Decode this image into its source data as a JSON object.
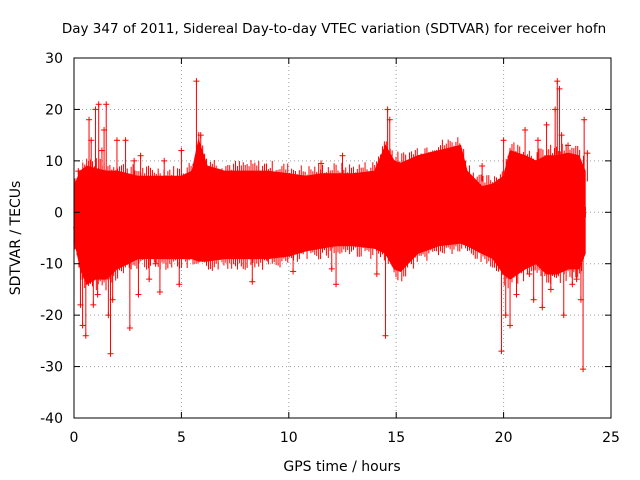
{
  "chart_data": {
    "type": "scatter",
    "title": "Day 347 of 2011, Sidereal Day-to-day VTEC variation (SDTVAR) for receiver hofn",
    "xlabel": "GPS time / hours",
    "ylabel": "SDTVAR / TECUs",
    "xlim": [
      0,
      25
    ],
    "ylim": [
      -40,
      30
    ],
    "x_ticks": [
      0,
      5,
      10,
      15,
      20,
      25
    ],
    "y_ticks": [
      -40,
      -30,
      -20,
      -10,
      0,
      10,
      20,
      30
    ],
    "x_tick_labels": [
      "0",
      "5",
      "10",
      "15",
      "20",
      "25"
    ],
    "y_tick_labels": [
      "-40",
      "-30",
      "-20",
      "-10",
      "0",
      "10",
      "20",
      "30"
    ],
    "grid": true,
    "series_color": "#ff0000",
    "marker": "plus-with-errorbars",
    "envelope": {
      "x": [
        0.0,
        0.3,
        0.6,
        1.0,
        1.5,
        2.0,
        2.5,
        3.0,
        4.0,
        5.0,
        5.5,
        5.8,
        6.2,
        7.0,
        8.0,
        9.0,
        10.0,
        10.8,
        11.5,
        12.2,
        13.0,
        14.0,
        14.5,
        14.9,
        15.2,
        16.0,
        17.0,
        18.0,
        18.3,
        19.0,
        19.5,
        20.0,
        20.3,
        21.0,
        21.5,
        22.0,
        22.5,
        23.0,
        23.5,
        23.8
      ],
      "upper": [
        5,
        8,
        9,
        8.5,
        8,
        8,
        7.5,
        7,
        7,
        7,
        8,
        14,
        9,
        8,
        8,
        8,
        7.5,
        7,
        7.5,
        7.5,
        7.5,
        8,
        13,
        10,
        9.5,
        11,
        12,
        13,
        8,
        5,
        5.5,
        7,
        12,
        11,
        10,
        11,
        11,
        11.5,
        11,
        8
      ],
      "lower": [
        -5,
        -11,
        -14,
        -13,
        -13,
        -11,
        -10,
        -9,
        -9,
        -9,
        -9,
        -9.5,
        -9.5,
        -9,
        -9,
        -9,
        -8.5,
        -7.5,
        -7,
        -6.5,
        -6.5,
        -7,
        -8,
        -11,
        -11.5,
        -8,
        -6.5,
        -6,
        -6.5,
        -8,
        -9,
        -12,
        -13,
        -11,
        -10,
        -12,
        -12,
        -11,
        -11,
        -8
      ]
    },
    "points": [
      {
        "x": 0.1,
        "y": -3
      },
      {
        "x": 0.2,
        "y": 8
      },
      {
        "x": 0.3,
        "y": -18
      },
      {
        "x": 0.4,
        "y": -22
      },
      {
        "x": 0.55,
        "y": -24
      },
      {
        "x": 0.7,
        "y": 18
      },
      {
        "x": 0.8,
        "y": 14
      },
      {
        "x": 0.9,
        "y": -18
      },
      {
        "x": 1.0,
        "y": 20
      },
      {
        "x": 1.1,
        "y": -16
      },
      {
        "x": 1.15,
        "y": 21
      },
      {
        "x": 1.3,
        "y": 12
      },
      {
        "x": 1.4,
        "y": 16
      },
      {
        "x": 1.5,
        "y": 21
      },
      {
        "x": 1.6,
        "y": -20
      },
      {
        "x": 1.7,
        "y": -27.5
      },
      {
        "x": 1.8,
        "y": -17
      },
      {
        "x": 2.0,
        "y": 14
      },
      {
        "x": 2.2,
        "y": -8
      },
      {
        "x": 2.4,
        "y": 14
      },
      {
        "x": 2.6,
        "y": -22.5
      },
      {
        "x": 2.8,
        "y": 10
      },
      {
        "x": 3.0,
        "y": -16
      },
      {
        "x": 3.1,
        "y": 11
      },
      {
        "x": 3.5,
        "y": -13
      },
      {
        "x": 3.8,
        "y": -10
      },
      {
        "x": 4.0,
        "y": -15.5
      },
      {
        "x": 4.2,
        "y": 10
      },
      {
        "x": 5.0,
        "y": 12
      },
      {
        "x": 4.9,
        "y": -14
      },
      {
        "x": 5.2,
        "y": -9
      },
      {
        "x": 5.7,
        "y": 25.5
      },
      {
        "x": 5.9,
        "y": 15
      },
      {
        "x": 6.0,
        "y": -9
      },
      {
        "x": 8.3,
        "y": -13.5
      },
      {
        "x": 9.0,
        "y": -9
      },
      {
        "x": 10.2,
        "y": -11.5
      },
      {
        "x": 12.0,
        "y": -11
      },
      {
        "x": 12.2,
        "y": -14
      },
      {
        "x": 11.5,
        "y": 9.5
      },
      {
        "x": 12.5,
        "y": 11
      },
      {
        "x": 14.1,
        "y": -12
      },
      {
        "x": 14.5,
        "y": -24
      },
      {
        "x": 14.6,
        "y": 20
      },
      {
        "x": 14.7,
        "y": 18
      },
      {
        "x": 19.0,
        "y": 9
      },
      {
        "x": 19.9,
        "y": -27
      },
      {
        "x": 20.0,
        "y": 14
      },
      {
        "x": 20.1,
        "y": -20
      },
      {
        "x": 20.3,
        "y": -22
      },
      {
        "x": 20.6,
        "y": -16
      },
      {
        "x": 21.0,
        "y": 16
      },
      {
        "x": 21.2,
        "y": -12
      },
      {
        "x": 21.4,
        "y": -17
      },
      {
        "x": 21.6,
        "y": 14
      },
      {
        "x": 21.8,
        "y": -18.5
      },
      {
        "x": 22.0,
        "y": 17
      },
      {
        "x": 22.2,
        "y": -15
      },
      {
        "x": 22.4,
        "y": 20
      },
      {
        "x": 22.5,
        "y": 25.5
      },
      {
        "x": 22.6,
        "y": 24
      },
      {
        "x": 22.7,
        "y": 15
      },
      {
        "x": 22.8,
        "y": -20
      },
      {
        "x": 23.0,
        "y": 13
      },
      {
        "x": 23.2,
        "y": -14
      },
      {
        "x": 23.4,
        "y": -13
      },
      {
        "x": 23.6,
        "y": -17
      },
      {
        "x": 23.7,
        "y": -30.5
      },
      {
        "x": 23.75,
        "y": 18
      },
      {
        "x": 23.9,
        "y": 11.5
      }
    ]
  }
}
